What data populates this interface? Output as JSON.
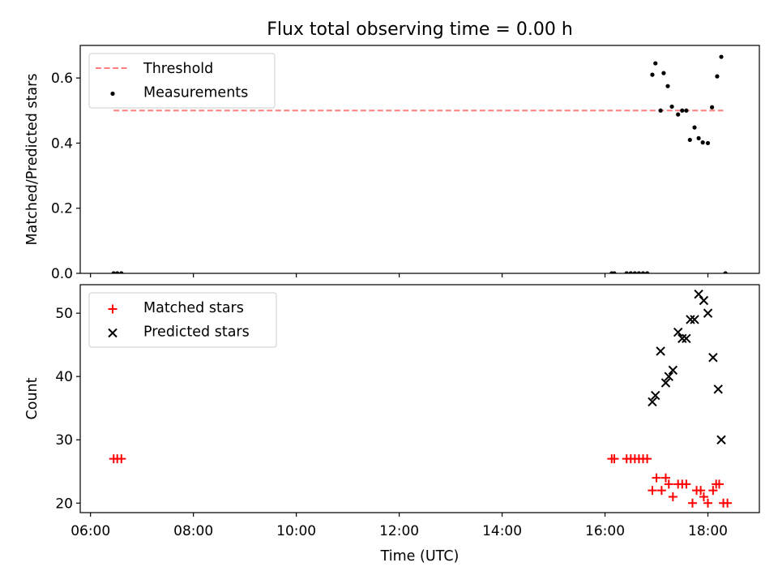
{
  "chart_data": {
    "title": "Flux total observing time = 0.00 h",
    "xlabel": "Time (UTC)",
    "xlim_hours": [
      5.8,
      19.0
    ],
    "xticks": [
      {
        "value": 6,
        "label": "06:00"
      },
      {
        "value": 8,
        "label": "08:00"
      },
      {
        "value": 10,
        "label": "10:00"
      },
      {
        "value": 12,
        "label": "12:00"
      },
      {
        "value": 14,
        "label": "14:00"
      },
      {
        "value": 16,
        "label": "16:00"
      },
      {
        "value": 18,
        "label": "18:00"
      }
    ],
    "panels": [
      {
        "type": "scatter",
        "ylabel": "Matched/Predicted stars",
        "ylim": [
          0,
          0.7
        ],
        "yticks": [
          {
            "value": 0.0,
            "label": "0.0"
          },
          {
            "value": 0.2,
            "label": "0.2"
          },
          {
            "value": 0.4,
            "label": "0.4"
          },
          {
            "value": 0.6,
            "label": "0.6"
          }
        ],
        "legend": {
          "placement": "upper-left"
        },
        "threshold": {
          "name": "Threshold",
          "value": 0.5,
          "x_range": [
            6.45,
            18.3
          ],
          "color": "#ff7f7f",
          "style": "dashed"
        },
        "series": [
          {
            "name": "Measurements",
            "marker": "dot",
            "color": "#000000",
            "x": [
              6.45,
              6.52,
              6.6,
              16.13,
              16.18,
              16.42,
              16.5,
              16.58,
              16.66,
              16.74,
              16.82,
              16.92,
              16.98,
              17.08,
              17.14,
              17.22,
              17.3,
              17.42,
              17.5,
              17.58,
              17.65,
              17.74,
              17.82,
              17.9,
              18.0,
              18.08,
              18.18,
              18.26,
              18.34
            ],
            "y": [
              0,
              0,
              0,
              0,
              0,
              0,
              0,
              0,
              0,
              0,
              0,
              0.61,
              0.645,
              0.5,
              0.615,
              0.575,
              0.512,
              0.488,
              0.5,
              0.5,
              0.41,
              0.448,
              0.415,
              0.402,
              0.4,
              0.51,
              0.605,
              0.665,
              0
            ]
          }
        ]
      },
      {
        "type": "scatter",
        "ylabel": "Count",
        "ylim": [
          18.5,
          54.5
        ],
        "yticks": [
          {
            "value": 20,
            "label": "20"
          },
          {
            "value": 30,
            "label": "30"
          },
          {
            "value": 40,
            "label": "40"
          },
          {
            "value": 50,
            "label": "50"
          }
        ],
        "legend": {
          "placement": "upper-left"
        },
        "series": [
          {
            "name": "Matched stars",
            "marker": "plus",
            "color": "#ff0000",
            "x": [
              6.45,
              6.52,
              6.6,
              16.13,
              16.18,
              16.42,
              16.5,
              16.58,
              16.66,
              16.74,
              16.82,
              16.92,
              17.0,
              17.1,
              17.18,
              17.24,
              17.32,
              17.42,
              17.5,
              17.58,
              17.7,
              17.78,
              17.86,
              17.92,
              18.0,
              18.1,
              18.16,
              18.22,
              18.3,
              18.38
            ],
            "y": [
              27,
              27,
              27,
              27,
              27,
              27,
              27,
              27,
              27,
              27,
              27,
              22,
              24,
              22,
              24,
              23,
              21,
              23,
              23,
              23,
              20,
              22,
              22,
              21,
              20,
              22,
              23,
              23,
              20,
              20
            ]
          },
          {
            "name": "Predicted stars",
            "marker": "x",
            "color": "#000000",
            "x": [
              16.92,
              16.98,
              17.08,
              17.18,
              17.24,
              17.32,
              17.42,
              17.5,
              17.58,
              17.66,
              17.74,
              17.82,
              17.92,
              18.0,
              18.1,
              18.2,
              18.26
            ],
            "y": [
              36,
              37,
              44,
              39,
              40,
              41,
              47,
              46,
              46,
              49,
              49,
              53,
              52,
              50,
              43,
              38,
              30
            ]
          }
        ]
      }
    ]
  }
}
